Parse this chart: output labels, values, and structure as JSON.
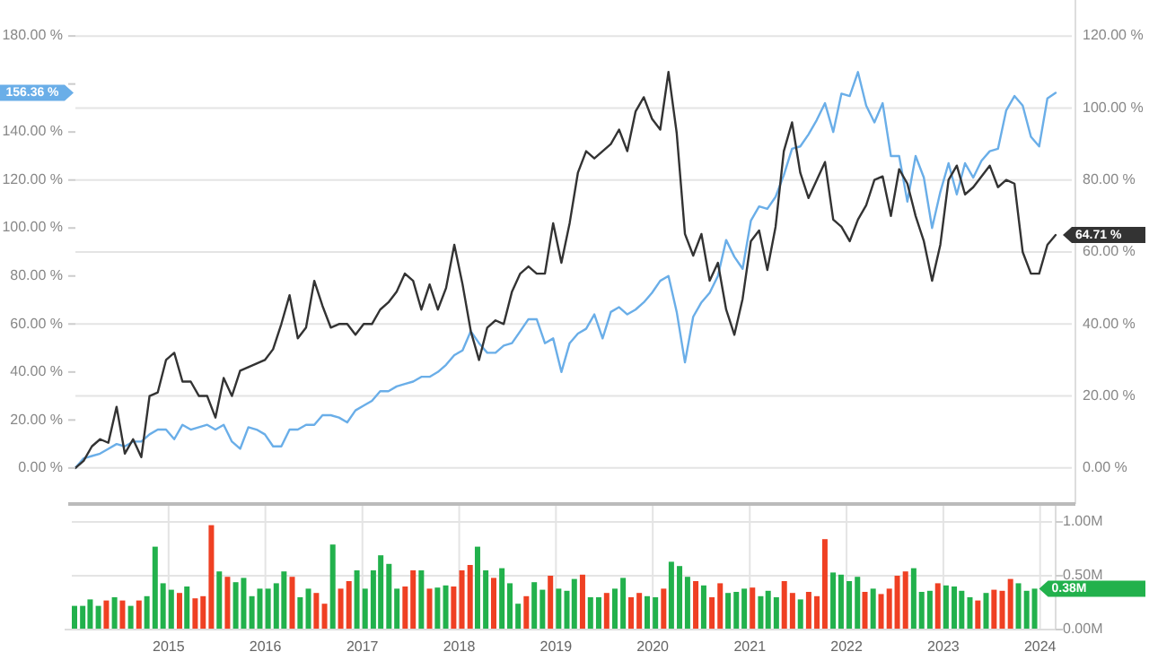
{
  "chart_data": [
    {
      "type": "line",
      "categories": [
        null,
        null,
        null,
        null,
        null,
        null,
        null,
        null,
        null,
        null,
        null,
        null,
        null,
        null,
        null,
        null,
        null,
        null,
        null,
        null,
        null,
        null,
        null,
        null,
        null,
        null,
        null,
        null,
        null,
        null,
        null,
        null,
        null,
        null,
        null,
        null,
        null,
        null,
        null,
        null,
        null,
        null,
        null,
        null,
        null,
        null,
        null,
        null,
        null,
        null,
        null,
        null,
        null,
        null,
        null,
        null,
        null,
        null,
        null,
        null,
        null,
        null,
        null,
        null,
        null,
        null,
        null,
        null,
        null,
        null,
        null,
        null,
        null,
        null,
        null,
        null,
        null,
        null,
        null,
        null,
        null,
        null,
        null,
        null,
        null,
        null,
        null,
        null,
        null,
        null,
        null,
        null,
        null,
        null,
        null,
        null,
        null,
        null,
        null,
        null,
        null,
        null,
        null,
        null,
        null,
        null,
        null,
        null,
        null,
        null,
        null,
        null,
        null,
        null,
        null,
        null,
        null,
        null,
        null,
        null
      ],
      "series": [
        {
          "color": "#6aaee8",
          "axis": "y",
          "values": [
            0,
            4,
            5,
            6,
            8,
            10,
            9,
            11,
            11,
            14,
            16,
            16,
            12,
            18,
            16,
            17,
            18,
            16,
            18,
            11,
            8,
            17,
            16,
            14,
            9,
            9,
            16,
            16,
            18,
            18,
            22,
            22,
            21,
            19,
            24,
            26,
            28,
            32,
            32,
            34,
            35,
            36,
            38,
            38,
            40,
            43,
            47,
            49,
            57,
            52,
            48,
            48,
            51,
            52,
            57,
            62,
            62,
            52,
            54,
            40,
            52,
            56,
            58,
            64,
            54,
            65,
            67,
            64,
            66,
            69,
            73,
            78,
            80,
            65,
            44,
            63,
            69,
            73,
            80,
            95,
            88,
            83,
            103,
            109,
            108,
            113,
            122,
            133,
            134,
            139,
            145,
            152,
            140,
            156,
            155,
            165,
            151,
            144,
            152,
            130,
            130,
            111,
            130,
            121,
            100,
            115,
            127,
            114,
            127,
            121,
            128,
            132,
            133,
            149,
            155,
            151,
            138,
            134,
            154,
            156.36
          ]
        },
        {
          "color": "#333333",
          "axis": "y2",
          "values": [
            0,
            2,
            6,
            8,
            7,
            17,
            4,
            8,
            3,
            20,
            21,
            30,
            32,
            24,
            24,
            20,
            20,
            14,
            25,
            20,
            27,
            28,
            29,
            30,
            33,
            40,
            48,
            36,
            39,
            52,
            45,
            39,
            40,
            40,
            37,
            40,
            40,
            44,
            46,
            49,
            54,
            52,
            44,
            51,
            44,
            50,
            62,
            51,
            38,
            30,
            39,
            41,
            40,
            49,
            54,
            56,
            54,
            54,
            68,
            57,
            68,
            82,
            88,
            86,
            88,
            90,
            94,
            88,
            99,
            103,
            97,
            94,
            110,
            93,
            65,
            59,
            65,
            52,
            57,
            44,
            37,
            47,
            63,
            66,
            55,
            67,
            88,
            96,
            82,
            75,
            80,
            85,
            69,
            67,
            63,
            69,
            73,
            80,
            81,
            70,
            83,
            79,
            70,
            63,
            52,
            62,
            80,
            84,
            76,
            78,
            81,
            84,
            78,
            80,
            79,
            60,
            54,
            54,
            62,
            64.71
          ]
        }
      ],
      "ylim": [
        -15,
        195
      ],
      "yticks": [
        {
          "value": 0,
          "label": "0.00 %"
        },
        {
          "value": 20,
          "label": "20.00 %"
        },
        {
          "value": 40,
          "label": "40.00 %"
        },
        {
          "value": 60,
          "label": "60.00 %"
        },
        {
          "value": 80,
          "label": "80.00 %"
        },
        {
          "value": 100,
          "label": "100.00 %"
        },
        {
          "value": 120,
          "label": "120.00 %"
        },
        {
          "value": 140,
          "label": "140.00 %"
        },
        {
          "value": 160,
          "label": null
        },
        {
          "value": 180,
          "label": "180.00 %"
        }
      ],
      "y2lim": [
        -10,
        130
      ],
      "y2ticks": [
        {
          "value": 0,
          "label": "0.00 %"
        },
        {
          "value": 20,
          "label": "20.00 %"
        },
        {
          "value": 40,
          "label": "40.00 %"
        },
        {
          "value": 60,
          "label": "60.00 %"
        },
        {
          "value": 80,
          "label": "80.00 %"
        },
        {
          "value": 100,
          "label": "100.00 %"
        },
        {
          "value": 120,
          "label": "120.00 %"
        }
      ],
      "annotations": [
        "156.36 %",
        "64.71 %"
      ],
      "grid": "y",
      "tick_labels": "y"
    },
    {
      "type": "bar",
      "x": [
        "2014-01",
        "2014-02",
        "2014-03",
        "2014-04",
        "2014-05",
        "2014-06",
        "2014-07",
        "2014-08",
        "2014-09",
        "2014-10",
        "2014-11",
        "2014-12",
        "2015-01",
        "2015-02",
        "2015-03",
        "2015-04",
        "2015-05",
        "2015-06",
        "2015-07",
        "2015-08",
        "2015-09",
        "2015-10",
        "2015-11",
        "2015-12",
        "2016-01",
        "2016-02",
        "2016-03",
        "2016-04",
        "2016-05",
        "2016-06",
        "2016-07",
        "2016-08",
        "2016-09",
        "2016-10",
        "2016-11",
        "2016-12",
        "2017-01",
        "2017-02",
        "2017-03",
        "2017-04",
        "2017-05",
        "2017-06",
        "2017-07",
        "2017-08",
        "2017-09",
        "2017-10",
        "2017-11",
        "2017-12",
        "2018-01",
        "2018-02",
        "2018-03",
        "2018-04",
        "2018-05",
        "2018-06",
        "2018-07",
        "2018-08",
        "2018-09",
        "2018-10",
        "2018-11",
        "2018-12",
        "2019-01",
        "2019-02",
        "2019-03",
        "2019-04",
        "2019-05",
        "2019-06",
        "2019-07",
        "2019-08",
        "2019-09",
        "2019-10",
        "2019-11",
        "2019-12",
        "2020-01",
        "2020-02",
        "2020-03",
        "2020-04",
        "2020-05",
        "2020-06",
        "2020-07",
        "2020-08",
        "2020-09",
        "2020-10",
        "2020-11",
        "2020-12",
        "2021-01",
        "2021-02",
        "2021-03",
        "2021-04",
        "2021-05",
        "2021-06",
        "2021-07",
        "2021-08",
        "2021-09",
        "2021-10",
        "2021-11",
        "2021-12",
        "2022-01",
        "2022-02",
        "2022-03",
        "2022-04",
        "2022-05",
        "2022-06",
        "2022-07",
        "2022-08",
        "2022-09",
        "2022-10",
        "2022-11",
        "2022-12",
        "2023-01",
        "2023-02",
        "2023-03",
        "2023-04",
        "2023-05",
        "2023-06",
        "2023-07",
        "2023-08",
        "2023-09",
        "2023-10",
        "2023-11",
        "2023-12"
      ],
      "values": [
        0.22,
        0.22,
        0.28,
        0.22,
        0.27,
        0.3,
        0.27,
        0.22,
        0.27,
        0.31,
        0.77,
        0.43,
        0.37,
        0.34,
        0.4,
        0.29,
        0.31,
        0.97,
        0.54,
        0.49,
        0.44,
        0.48,
        0.31,
        0.38,
        0.38,
        0.43,
        0.54,
        0.49,
        0.3,
        0.38,
        0.34,
        0.24,
        0.79,
        0.38,
        0.45,
        0.55,
        0.38,
        0.55,
        0.69,
        0.61,
        0.38,
        0.4,
        0.55,
        0.55,
        0.38,
        0.39,
        0.41,
        0.4,
        0.55,
        0.6,
        0.77,
        0.55,
        0.48,
        0.57,
        0.43,
        0.24,
        0.31,
        0.44,
        0.37,
        0.5,
        0.38,
        0.36,
        0.47,
        0.51,
        0.3,
        0.3,
        0.34,
        0.38,
        0.48,
        0.3,
        0.34,
        0.31,
        0.3,
        0.38,
        0.63,
        0.59,
        0.49,
        0.45,
        0.41,
        0.3,
        0.43,
        0.34,
        0.35,
        0.38,
        0.39,
        0.31,
        0.36,
        0.3,
        0.45,
        0.34,
        0.28,
        0.35,
        0.31,
        0.84,
        0.53,
        0.51,
        0.45,
        0.49,
        0.35,
        0.38,
        0.33,
        0.38,
        0.5,
        0.54,
        0.57,
        0.35,
        0.36,
        0.43,
        0.41,
        0.4,
        0.36,
        0.3,
        0.27,
        0.34,
        0.37,
        0.36,
        0.47,
        0.43,
        0.36,
        0.38
      ],
      "colors": [
        "#22b14c",
        "#22b14c",
        "#22b14c",
        "#22b14c",
        "#ef4023",
        "#22b14c",
        "#ef4023",
        "#22b14c",
        "#ef4023",
        "#22b14c",
        "#22b14c",
        "#22b14c",
        "#22b14c",
        "#ef4023",
        "#22b14c",
        "#ef4023",
        "#ef4023",
        "#ef4023",
        "#22b14c",
        "#ef4023",
        "#22b14c",
        "#22b14c",
        "#22b14c",
        "#22b14c",
        "#22b14c",
        "#22b14c",
        "#22b14c",
        "#ef4023",
        "#22b14c",
        "#22b14c",
        "#ef4023",
        "#ef4023",
        "#22b14c",
        "#ef4023",
        "#ef4023",
        "#22b14c",
        "#22b14c",
        "#22b14c",
        "#22b14c",
        "#22b14c",
        "#22b14c",
        "#ef4023",
        "#ef4023",
        "#22b14c",
        "#ef4023",
        "#22b14c",
        "#22b14c",
        "#ef4023",
        "#ef4023",
        "#ef4023",
        "#22b14c",
        "#22b14c",
        "#ef4023",
        "#22b14c",
        "#22b14c",
        "#22b14c",
        "#ef4023",
        "#22b14c",
        "#22b14c",
        "#ef4023",
        "#22b14c",
        "#22b14c",
        "#22b14c",
        "#ef4023",
        "#22b14c",
        "#22b14c",
        "#ef4023",
        "#22b14c",
        "#22b14c",
        "#ef4023",
        "#ef4023",
        "#22b14c",
        "#22b14c",
        "#ef4023",
        "#22b14c",
        "#22b14c",
        "#22b14c",
        "#ef4023",
        "#22b14c",
        "#ef4023",
        "#ef4023",
        "#22b14c",
        "#22b14c",
        "#22b14c",
        "#ef4023",
        "#22b14c",
        "#22b14c",
        "#22b14c",
        "#ef4023",
        "#ef4023",
        "#22b14c",
        "#ef4023",
        "#ef4023",
        "#ef4023",
        "#22b14c",
        "#22b14c",
        "#22b14c",
        "#22b14c",
        "#ef4023",
        "#22b14c",
        "#ef4023",
        "#ef4023",
        "#ef4023",
        "#ef4023",
        "#22b14c",
        "#22b14c",
        "#22b14c",
        "#ef4023",
        "#22b14c",
        "#22b14c",
        "#22b14c",
        "#22b14c",
        "#ef4023",
        "#22b14c",
        "#ef4023",
        "#ef4023",
        "#ef4023",
        "#22b14c",
        "#22b14c",
        "#22b14c"
      ],
      "annotations": [
        "0.38M"
      ],
      "xlim": [
        "2014-01-01",
        "2024-02-15"
      ],
      "xticks": [
        "2015",
        "2016",
        "2017",
        "2018",
        "2019",
        "2020",
        "2021",
        "2022",
        "2023",
        "2024"
      ],
      "ylim": [
        0,
        1.15
      ],
      "yticks": [
        {
          "value": 0,
          "label": "0.00M"
        },
        {
          "value": 0.5,
          "label": "0.50M"
        },
        {
          "value": 1,
          "label": "1.00M"
        }
      ],
      "grid": true
    }
  ]
}
